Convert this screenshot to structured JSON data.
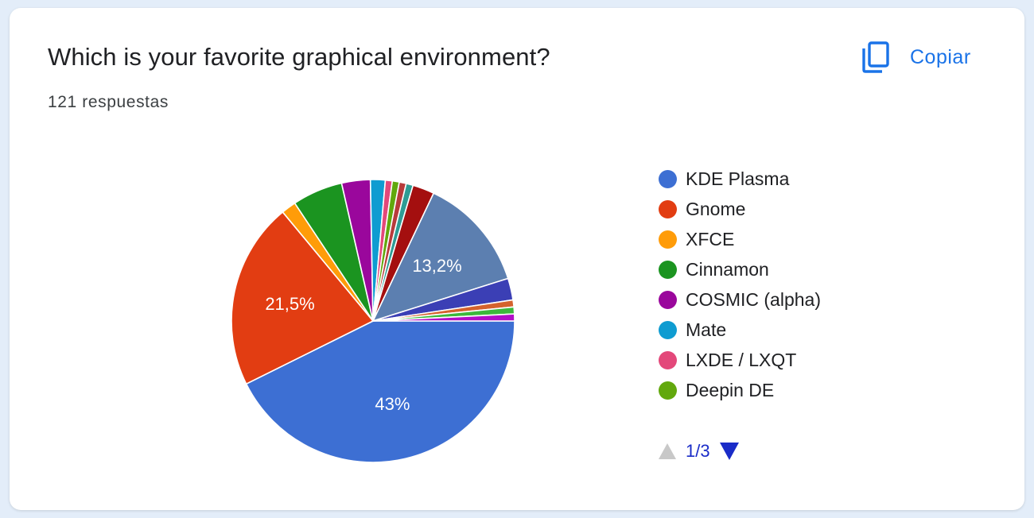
{
  "card": {
    "title": "Which is your favorite graphical environment?",
    "responses": "121 respuestas",
    "copy_label": "Copiar",
    "copy_icon": "copy-icon"
  },
  "pager": {
    "label": "1/3",
    "up_icon": "triangle-up-icon",
    "down_icon": "triangle-down-icon"
  },
  "chart_data": {
    "type": "pie",
    "title": "Which is your favorite graphical environment?",
    "total_responses": 121,
    "legend_position": "right",
    "legend_visible": [
      "KDE Plasma",
      "Gnome",
      "XFCE",
      "Cinnamon",
      "COSMIC (alpha)",
      "Mate",
      "LXDE / LXQT",
      "Deepin DE"
    ],
    "slices": [
      {
        "name": "KDE Plasma",
        "value": 43.0,
        "label": "43%",
        "color": "#3d6fd3"
      },
      {
        "name": "Gnome",
        "value": 21.5,
        "label": "21,5%",
        "color": "#e23d12"
      },
      {
        "name": "XFCE",
        "value": 1.7,
        "color": "#ff9c09"
      },
      {
        "name": "Cinnamon",
        "value": 5.8,
        "color": "#1b9420"
      },
      {
        "name": "COSMIC (alpha)",
        "value": 3.3,
        "color": "#9a079c"
      },
      {
        "name": "Mate",
        "value": 1.7,
        "color": "#0f9cd1"
      },
      {
        "name": "LXDE / LXQT",
        "value": 0.8,
        "color": "#e3487a"
      },
      {
        "name": "Deepin DE",
        "value": 0.8,
        "color": "#62a80d"
      },
      {
        "value": 0.8,
        "color": "#b83b3b"
      },
      {
        "value": 0.8,
        "color": "#2e9c94"
      },
      {
        "value": 2.5,
        "color": "#a40f0f"
      },
      {
        "value": 13.2,
        "label": "13,2%",
        "color": "#5c7fb0"
      },
      {
        "value": 2.5,
        "color": "#3b3fb5"
      },
      {
        "value": 0.8,
        "color": "#d4622d"
      },
      {
        "value": 0.8,
        "color": "#3cb83c"
      },
      {
        "value": 0.8,
        "color": "#b20ec7"
      }
    ]
  }
}
